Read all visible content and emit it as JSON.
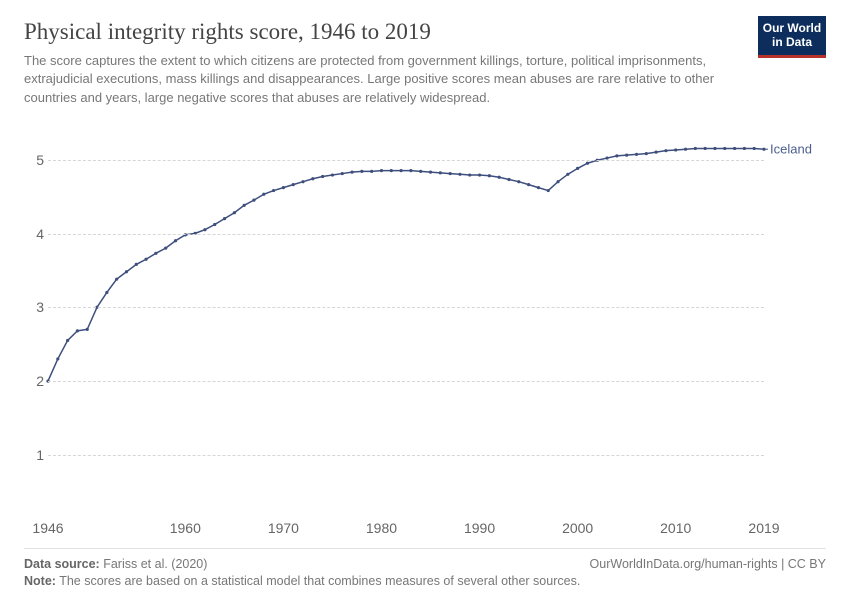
{
  "header": {
    "title": "Physical integrity rights score, 1946 to 2019",
    "subtitle": "The score captures the extent to which citizens are protected from government killings, torture, political imprisonments, extrajudicial executions, mass killings and disappearances. Large positive scores mean abuses are rare relative to other countries and years, large negative scores that abuses are relatively widespread.",
    "logo_line1": "Our World",
    "logo_line2": "in Data"
  },
  "chart": {
    "type": "line",
    "background_color": "#ffffff",
    "grid_color": "#d6d6d6",
    "grid_dash": true,
    "axis_text_color": "#666666",
    "axis_fontsize": 14,
    "x": {
      "min": 1946,
      "max": 2019,
      "ticks": [
        1946,
        1960,
        1970,
        1980,
        1990,
        2000,
        2010,
        2019
      ]
    },
    "y": {
      "min": 0.2,
      "max": 5.4,
      "ticks": [
        1,
        2,
        3,
        4,
        5
      ]
    },
    "series": [
      {
        "name": "Iceland",
        "label": "Iceland",
        "color": "#3e4e7d",
        "line_width": 1.5,
        "marker_radius": 1.6,
        "years": [
          1946,
          1947,
          1948,
          1949,
          1950,
          1951,
          1952,
          1953,
          1954,
          1955,
          1956,
          1957,
          1958,
          1959,
          1960,
          1961,
          1962,
          1963,
          1964,
          1965,
          1966,
          1967,
          1968,
          1969,
          1970,
          1971,
          1972,
          1973,
          1974,
          1975,
          1976,
          1977,
          1978,
          1979,
          1980,
          1981,
          1982,
          1983,
          1984,
          1985,
          1986,
          1987,
          1988,
          1989,
          1990,
          1991,
          1992,
          1993,
          1994,
          1995,
          1996,
          1997,
          1998,
          1999,
          2000,
          2001,
          2002,
          2003,
          2004,
          2005,
          2006,
          2007,
          2008,
          2009,
          2010,
          2011,
          2012,
          2013,
          2014,
          2015,
          2016,
          2017,
          2018,
          2019
        ],
        "values": [
          2.0,
          2.3,
          2.55,
          2.68,
          2.7,
          3.0,
          3.2,
          3.38,
          3.48,
          3.58,
          3.65,
          3.73,
          3.8,
          3.9,
          3.98,
          4.0,
          4.05,
          4.12,
          4.2,
          4.28,
          4.38,
          4.45,
          4.53,
          4.58,
          4.62,
          4.66,
          4.7,
          4.74,
          4.77,
          4.79,
          4.81,
          4.83,
          4.84,
          4.84,
          4.85,
          4.85,
          4.85,
          4.85,
          4.84,
          4.83,
          4.82,
          4.81,
          4.8,
          4.79,
          4.79,
          4.78,
          4.76,
          4.73,
          4.7,
          4.66,
          4.62,
          4.58,
          4.7,
          4.8,
          4.88,
          4.95,
          4.99,
          5.02,
          5.05,
          5.06,
          5.07,
          5.08,
          5.1,
          5.12,
          5.13,
          5.14,
          5.15,
          5.15,
          5.15,
          5.15,
          5.15,
          5.15,
          5.15,
          5.14
        ]
      }
    ]
  },
  "footer": {
    "source_label": "Data source:",
    "source_value": "Fariss et al. (2020)",
    "attribution": "OurWorldInData.org/human-rights | CC BY",
    "note_label": "Note:",
    "note_value": "The scores are based on a statistical model that combines measures of several other sources."
  }
}
